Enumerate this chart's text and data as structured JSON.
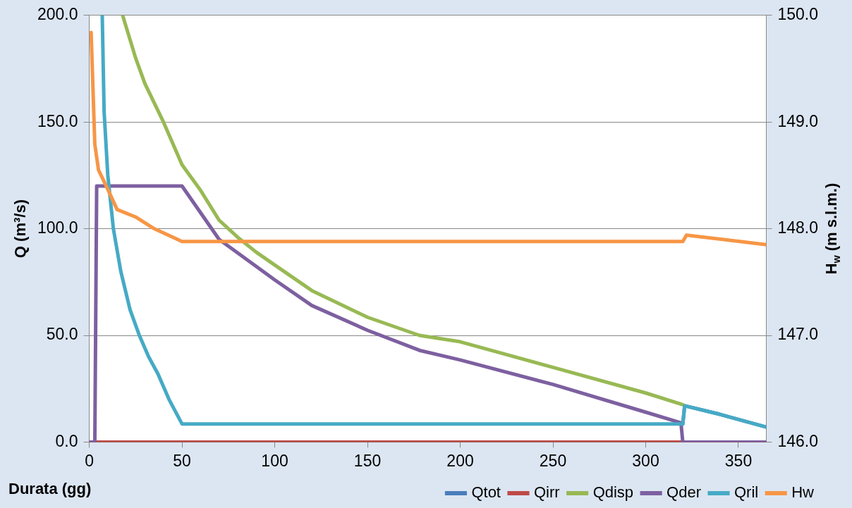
{
  "chart_data": {
    "type": "line",
    "xlabel": "Durata (gg)",
    "ylabel": "Q (m³/s)",
    "y2label": "H$_{w}$ (m s.l.m.)",
    "xlim": [
      0,
      365
    ],
    "xticks": [
      0,
      50,
      100,
      150,
      200,
      250,
      300,
      350
    ],
    "ylim": [
      0,
      200
    ],
    "yticks": [
      {
        "value": 0,
        "label": "0.0"
      },
      {
        "value": 50,
        "label": "50.0"
      },
      {
        "value": 100,
        "label": "100.0"
      },
      {
        "value": 150,
        "label": "150.0"
      },
      {
        "value": 200,
        "label": "200.0"
      }
    ],
    "y2lim": [
      146,
      150
    ],
    "y2ticks": [
      {
        "value": 146,
        "label": "146.0"
      },
      {
        "value": 147,
        "label": "147.0"
      },
      {
        "value": 148,
        "label": "148.0"
      },
      {
        "value": 149,
        "label": "149.0"
      },
      {
        "value": 150,
        "label": "150.0"
      }
    ],
    "grid": "y",
    "legend": "bottom right",
    "marker": "none",
    "line_style": "solid",
    "series": [
      {
        "name": "Qtot",
        "color": "#4a7ebb",
        "x": [
          320,
          321,
          340,
          365
        ],
        "values": [
          8.5,
          17,
          13,
          7
        ]
      },
      {
        "name": "Qirr",
        "color": "#be4b48",
        "x": [
          0,
          365
        ],
        "values": [
          0,
          0
        ]
      },
      {
        "name": "Qdisp",
        "color": "#98b954",
        "x": [
          18,
          25,
          30,
          40,
          50,
          60,
          70,
          80,
          90,
          100,
          120,
          150,
          178,
          200,
          250,
          300,
          320
        ],
        "values": [
          200,
          180,
          168,
          150,
          130,
          118,
          104,
          96,
          89,
          83,
          71,
          58.5,
          50,
          47,
          35,
          23,
          17.5
        ]
      },
      {
        "name": "Qder",
        "color": "#7d60a0",
        "x": [
          0,
          3,
          4,
          50,
          70,
          100,
          120,
          150,
          178,
          200,
          250,
          300,
          319,
          320,
          365
        ],
        "values": [
          0,
          0,
          120,
          120,
          95,
          76,
          64,
          52.4,
          43,
          38.5,
          27,
          14,
          9,
          0,
          0
        ]
      },
      {
        "name": "Qril",
        "color": "#46aac5",
        "x": [
          7,
          8,
          10,
          13,
          17,
          22,
          27,
          32,
          37,
          43,
          50,
          320,
          321,
          340,
          365
        ],
        "values": [
          200,
          155,
          125,
          100,
          80,
          62,
          50,
          40,
          32,
          20,
          8.5,
          8.5,
          17,
          13,
          7
        ]
      },
      {
        "name": "Hw",
        "color": "#f79646",
        "axis": "y2",
        "x": [
          1,
          3,
          5,
          10,
          15,
          25,
          35,
          50,
          320,
          322,
          365
        ],
        "values": [
          149.84,
          148.79,
          148.55,
          148.37,
          148.18,
          148.11,
          148.0,
          147.88,
          147.88,
          147.94,
          147.85
        ]
      }
    ]
  }
}
